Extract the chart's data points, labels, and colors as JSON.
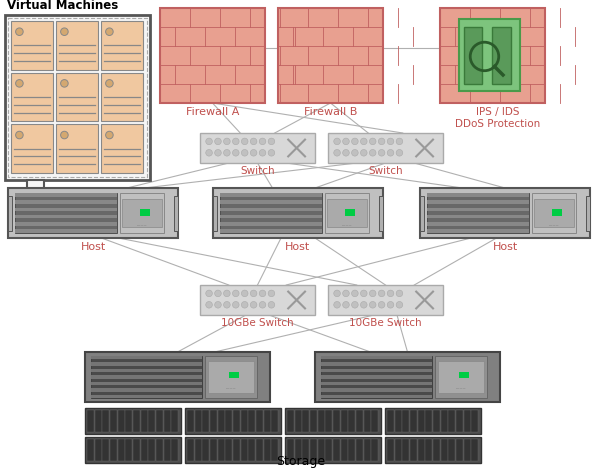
{
  "bg_color": "#ffffff",
  "text_color_label": "#c0504d",
  "text_color_title": "#000000",
  "line_color": "#b0b0b0",
  "firewall_fill": "#e8a090",
  "firewall_brick": "#c06060",
  "switch_fill": "#d8d8d8",
  "switch_port_color": "#c0c0c0",
  "switch_x_color": "#999999",
  "host_outer": "#c0c0c0",
  "host_inner": "#686868",
  "host_stripe": "#888888",
  "host_bay_fill": "#b0b0b0",
  "host_led": "#00cc44",
  "vm_fill": "#f0c8a0",
  "vm_border": "#888888",
  "vm_circle": "#d4a870",
  "vm_line": "#888888",
  "vm_rack_fill": "#f5f5f5",
  "vm_rack_border": "#555555",
  "storage_outer": "#808080",
  "storage_inner": "#4a4a4a",
  "storage_stripe": "#757575",
  "storage_bay": "#909090",
  "disk_shelf_fill": "#505050",
  "disk_fill": "#333333",
  "disk_border": "#666666",
  "ips_green": "#7dc47d",
  "title_vm": "Virtual Machines",
  "label_fw_a": "Firewall A",
  "label_fw_b": "Firewall B",
  "label_ips": "IPS / IDS\nDDoS Protection",
  "label_switch": "Switch",
  "label_host": "Host",
  "label_10gbe": "10GBe Switch",
  "label_storage": "Storage",
  "figsize": [
    6.01,
    4.72
  ],
  "dpi": 100
}
